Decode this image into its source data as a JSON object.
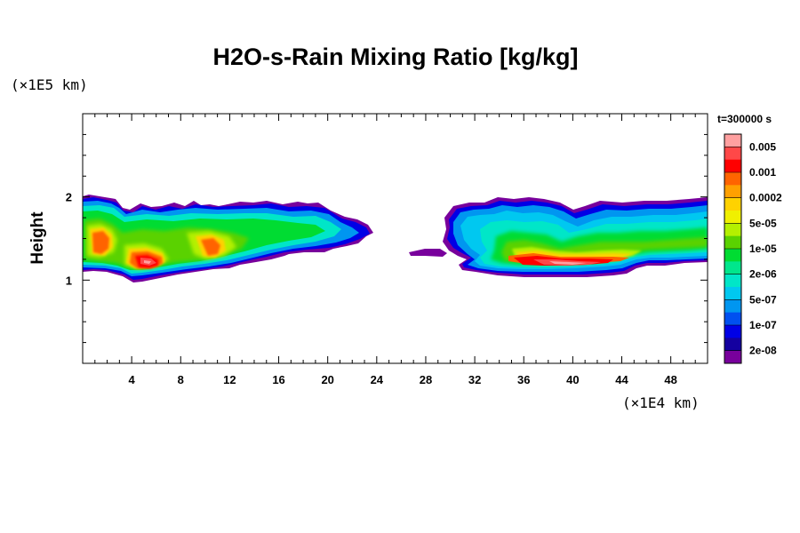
{
  "chart_data": {
    "type": "heatmap",
    "title": "H2O-s-Rain Mixing Ratio [kg/kg]",
    "ylabel": "Height",
    "y_unit": "(×1E5 km)",
    "x_unit": "(×1E4 km)",
    "time_label": "t=300000 s",
    "xlim": [
      0,
      51
    ],
    "ylim": [
      0,
      3
    ],
    "x_ticks": [
      "4",
      "8",
      "12",
      "16",
      "20",
      "24",
      "28",
      "32",
      "36",
      "40",
      "44",
      "48"
    ],
    "x_tick_values": [
      4,
      8,
      12,
      16,
      20,
      24,
      28,
      32,
      36,
      40,
      44,
      48
    ],
    "y_ticks": [
      "1",
      "2"
    ],
    "y_tick_values": [
      1,
      2
    ],
    "colorbar": {
      "labels": [
        "0.005",
        "0.001",
        "0.0002",
        "5e-05",
        "1e-05",
        "2e-06",
        "5e-07",
        "1e-07",
        "2e-08"
      ],
      "colors": [
        "#ffa0a0",
        "#ff4848",
        "#ff0000",
        "#ff6400",
        "#ffa000",
        "#ffd200",
        "#f0f000",
        "#b4f000",
        "#5ad200",
        "#00dc32",
        "#00e68c",
        "#00e6c8",
        "#00c8f0",
        "#0096f0",
        "#0050f0",
        "#0000e6",
        "#1400a0",
        "#78009c"
      ]
    },
    "cloud_bands": [
      {
        "x_range": [
          0,
          22.5
        ],
        "y_range": [
          1.0,
          2.0
        ],
        "max_level": "0.005",
        "hotspots_x": [
          1.9,
          5.4,
          10.5
        ]
      },
      {
        "x_range": [
          26.5,
          51
        ],
        "y_range": [
          1.1,
          1.95
        ],
        "max_level": "0.005",
        "hotspots_x": [
          36.5,
          40.5
        ]
      }
    ]
  }
}
